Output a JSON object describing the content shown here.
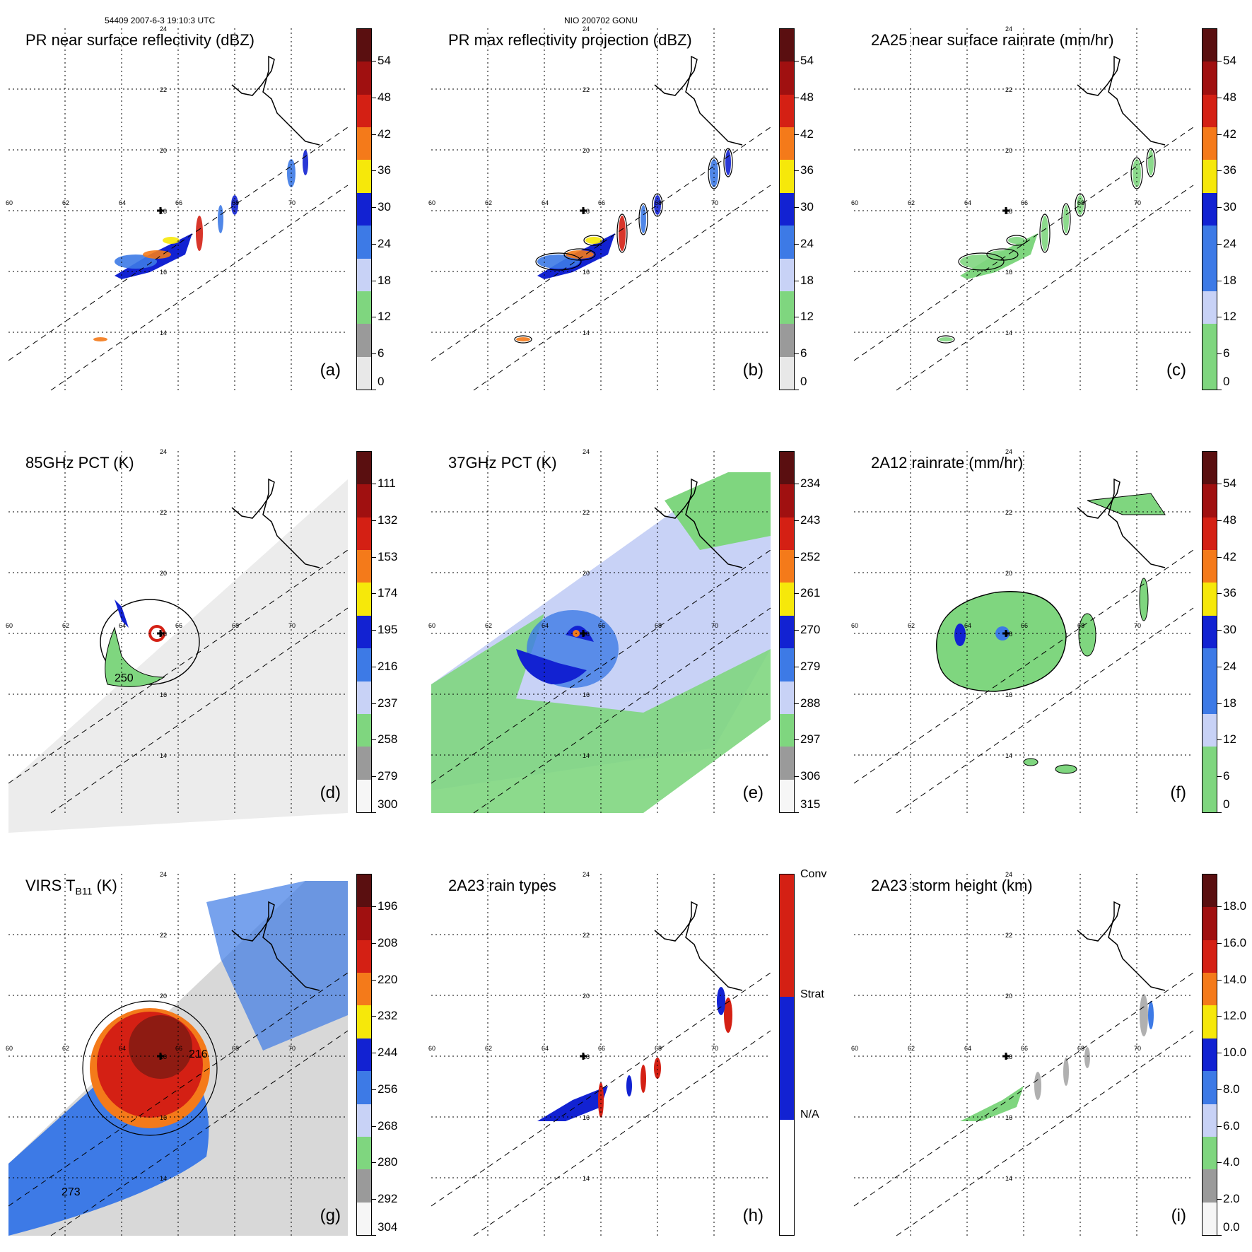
{
  "header": {
    "left": "54409 2007-6-3 19:10:3 UTC",
    "center": "NIO 200702 GONU"
  },
  "lat_labels": [
    "24",
    "22",
    "20",
    "18",
    "16",
    "14"
  ],
  "lon_labels": [
    "60",
    "62",
    "64",
    "66",
    "68",
    "70"
  ],
  "colors": {
    "cold": "#5a0f10",
    "red": "#d42014",
    "orange": "#f47a1a",
    "yellow": "#f6e80a",
    "blue": "#1222d2",
    "midblue": "#3d7ae6",
    "lightblue": "#c8d2f6",
    "green": "#7fd67f",
    "gray": "#9a9a9a",
    "lightgray": "#e8e8e8"
  },
  "panels": [
    {
      "id": "a",
      "title": "PR near surface reflectivity (dBZ)",
      "letter": "(a)",
      "ticks": [
        "54",
        "48",
        "42",
        "36",
        "30",
        "24",
        "18",
        "12",
        "6",
        "0"
      ]
    },
    {
      "id": "b",
      "title": "PR max reflectivity projection (dBZ)",
      "letter": "(b)",
      "ticks": [
        "54",
        "48",
        "42",
        "36",
        "30",
        "24",
        "18",
        "12",
        "6",
        "0"
      ]
    },
    {
      "id": "c",
      "title": "2A25 near surface rainrate (mm/hr)",
      "letter": "(c)",
      "ticks": [
        "54",
        "48",
        "42",
        "36",
        "30",
        "24",
        "18",
        "12",
        "6",
        "0"
      ]
    },
    {
      "id": "d",
      "title": "85GHz PCT (K)",
      "letter": "(d)",
      "ticks": [
        "111",
        "132",
        "153",
        "174",
        "195",
        "216",
        "237",
        "258",
        "279",
        "300"
      ],
      "contour": "250"
    },
    {
      "id": "e",
      "title": "37GHz PCT (K)",
      "letter": "(e)",
      "ticks": [
        "234",
        "243",
        "252",
        "261",
        "270",
        "279",
        "288",
        "297",
        "306",
        "315"
      ]
    },
    {
      "id": "f",
      "title": "2A12 rainrate (mm/hr)",
      "letter": "(f)",
      "ticks": [
        "54",
        "48",
        "42",
        "36",
        "30",
        "24",
        "18",
        "12",
        "6",
        "0"
      ]
    },
    {
      "id": "g",
      "title_main": "VIRS T",
      "title_sub": "B11",
      "title_tail": " (K)",
      "letter": "(g)",
      "ticks": [
        "196",
        "208",
        "220",
        "232",
        "244",
        "256",
        "268",
        "280",
        "292",
        "304"
      ],
      "contours": [
        "216",
        "273"
      ]
    },
    {
      "id": "h",
      "title": "2A23 rain types",
      "letter": "(h)",
      "cat_ticks": [
        "Conv",
        "Strat",
        "N/A"
      ]
    },
    {
      "id": "i",
      "title": "2A23 storm height (km)",
      "letter": "(i)",
      "ticks": [
        "18.0",
        "16.0",
        "14.0",
        "12.0",
        "10.0",
        "8.0",
        "6.0",
        "4.0",
        "2.0",
        "0.0"
      ]
    }
  ]
}
